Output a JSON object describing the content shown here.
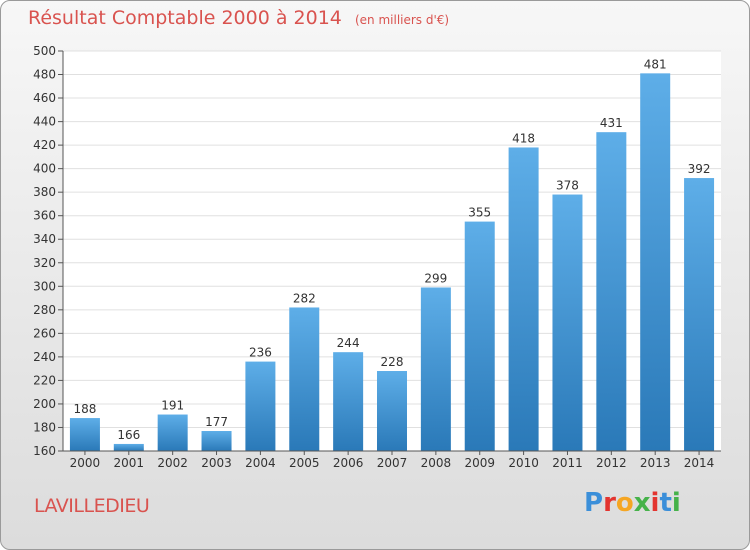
{
  "title": "Résultat Comptable 2000 à 2014",
  "unit": "(en milliers d'€)",
  "commune": "LAVILLEDIEU",
  "logo": {
    "letters": [
      "P",
      "r",
      "o",
      "x",
      "i",
      "t",
      "i"
    ],
    "colors": [
      "#3b8fd9",
      "#e3342f",
      "#f5a623",
      "#46b24a",
      "#e3342f",
      "#3b8fd9",
      "#46b24a"
    ]
  },
  "colors": {
    "bar_top": "#5eaee8",
    "bar_bottom": "#2a79b8",
    "grid": "#e0e0e0",
    "title": "#d9534f"
  },
  "chart_data": {
    "type": "bar",
    "categories": [
      "2000",
      "2001",
      "2002",
      "2003",
      "2004",
      "2005",
      "2006",
      "2007",
      "2008",
      "2009",
      "2010",
      "2011",
      "2012",
      "2013",
      "2014"
    ],
    "values": [
      188,
      166,
      191,
      177,
      236,
      282,
      244,
      228,
      299,
      355,
      418,
      378,
      431,
      481,
      392
    ],
    "ylim": [
      160,
      500
    ],
    "yticks": [
      160,
      180,
      200,
      220,
      240,
      260,
      280,
      300,
      320,
      340,
      360,
      380,
      400,
      420,
      440,
      460,
      480,
      500
    ],
    "grid": true,
    "title": "Résultat Comptable 2000 à 2014",
    "xlabel": "",
    "ylabel": ""
  }
}
